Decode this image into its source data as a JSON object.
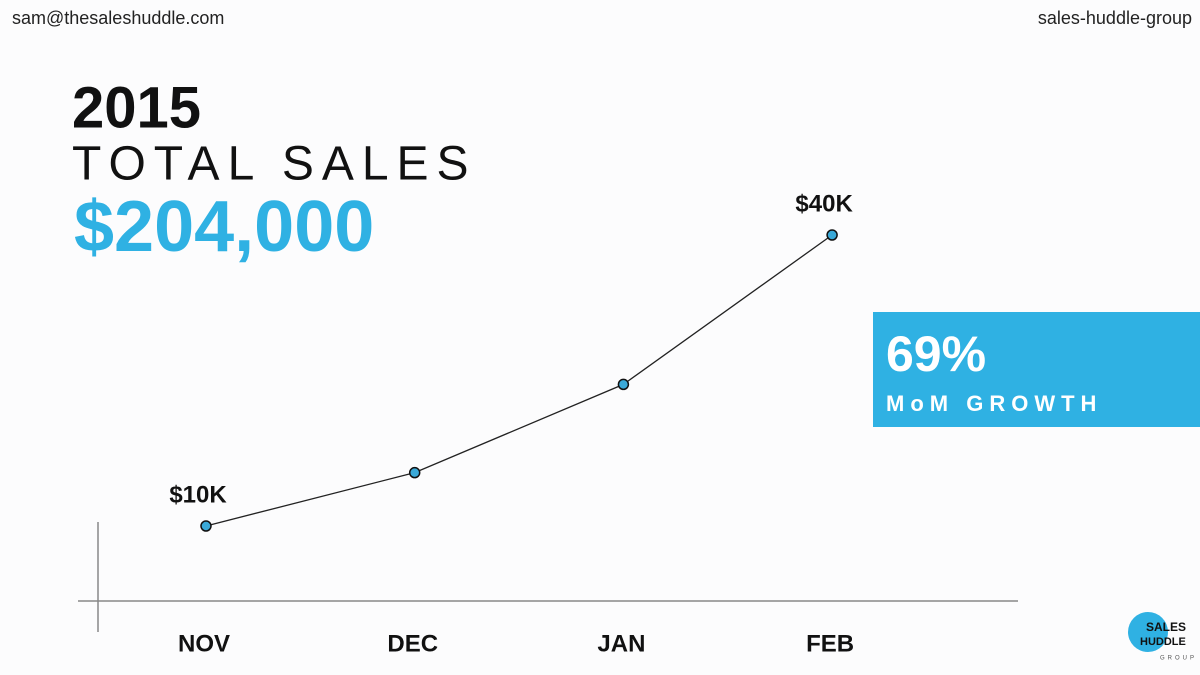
{
  "header": {
    "email": "sam@thesaleshuddle.com",
    "group": "sales-huddle-group"
  },
  "chart_data": {
    "type": "line",
    "title": "2015",
    "subtitle": "TOTAL SALES",
    "total": "$204,000",
    "categories": [
      "NOV",
      "DEC",
      "JAN",
      "FEB"
    ],
    "values": [
      10,
      15.5,
      24.6,
      40
    ],
    "value_labels": [
      "$10K",
      null,
      null,
      "$40K"
    ],
    "color": "#3aa9d8",
    "callout": {
      "value": "69%",
      "label": "MoM GROWTH"
    }
  },
  "logo": {
    "line1": "SALES",
    "line2": "HUDDLE",
    "line3": "GROUP"
  }
}
